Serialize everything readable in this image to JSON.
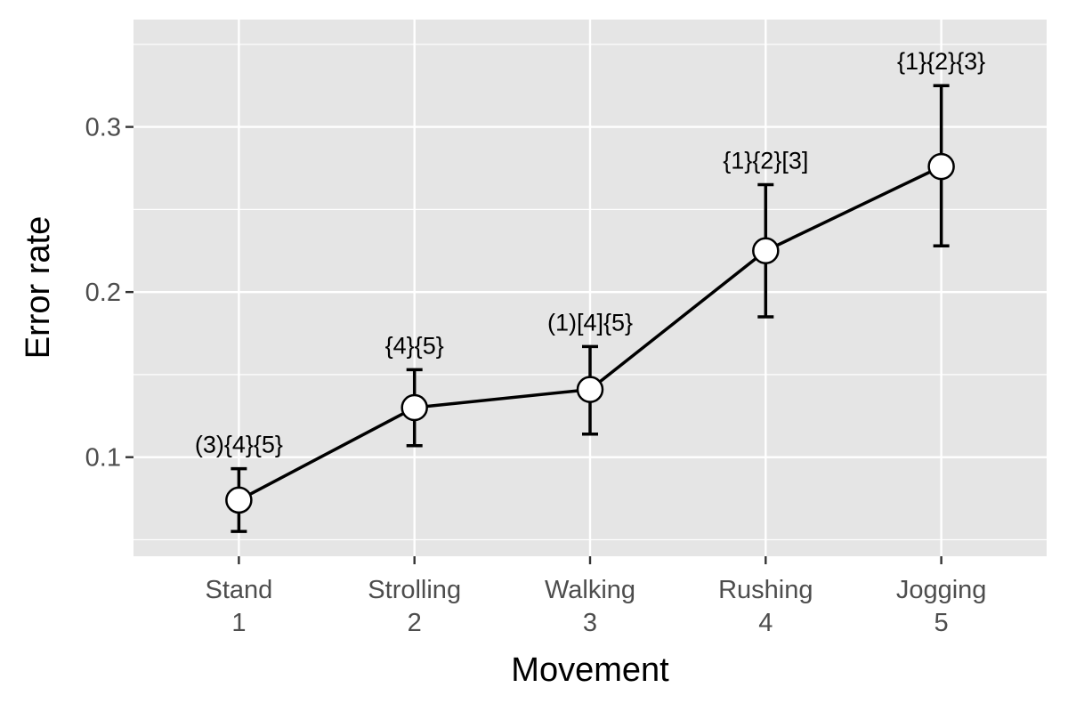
{
  "chart_data": {
    "type": "line",
    "xlabel": "Movement",
    "ylabel": "Error rate",
    "categories": [
      {
        "name": "Stand",
        "index": "1"
      },
      {
        "name": "Strolling",
        "index": "2"
      },
      {
        "name": "Walking",
        "index": "3"
      },
      {
        "name": "Rushing",
        "index": "4"
      },
      {
        "name": "Jogging",
        "index": "5"
      }
    ],
    "series": [
      {
        "values": [
          0.074,
          0.13,
          0.141,
          0.225,
          0.276
        ],
        "error_lower": [
          0.055,
          0.107,
          0.114,
          0.185,
          0.228
        ],
        "error_upper": [
          0.093,
          0.153,
          0.167,
          0.265,
          0.325
        ],
        "annotations": [
          "(3){4}{5}",
          "{4}{5}",
          "(1)[4]{5}",
          "{1}{2}[3]",
          "{1}{2}{3}"
        ]
      }
    ],
    "ylim": [
      0.04,
      0.365
    ],
    "yticks": [
      0.1,
      0.2,
      0.3
    ],
    "ytick_labels": [
      "0.1",
      "0.2",
      "0.3"
    ],
    "grid": true,
    "colors": {
      "panel_background": "#e5e5e5",
      "grid": "#ffffff",
      "line": "#000000",
      "point_fill": "#ffffff"
    }
  }
}
